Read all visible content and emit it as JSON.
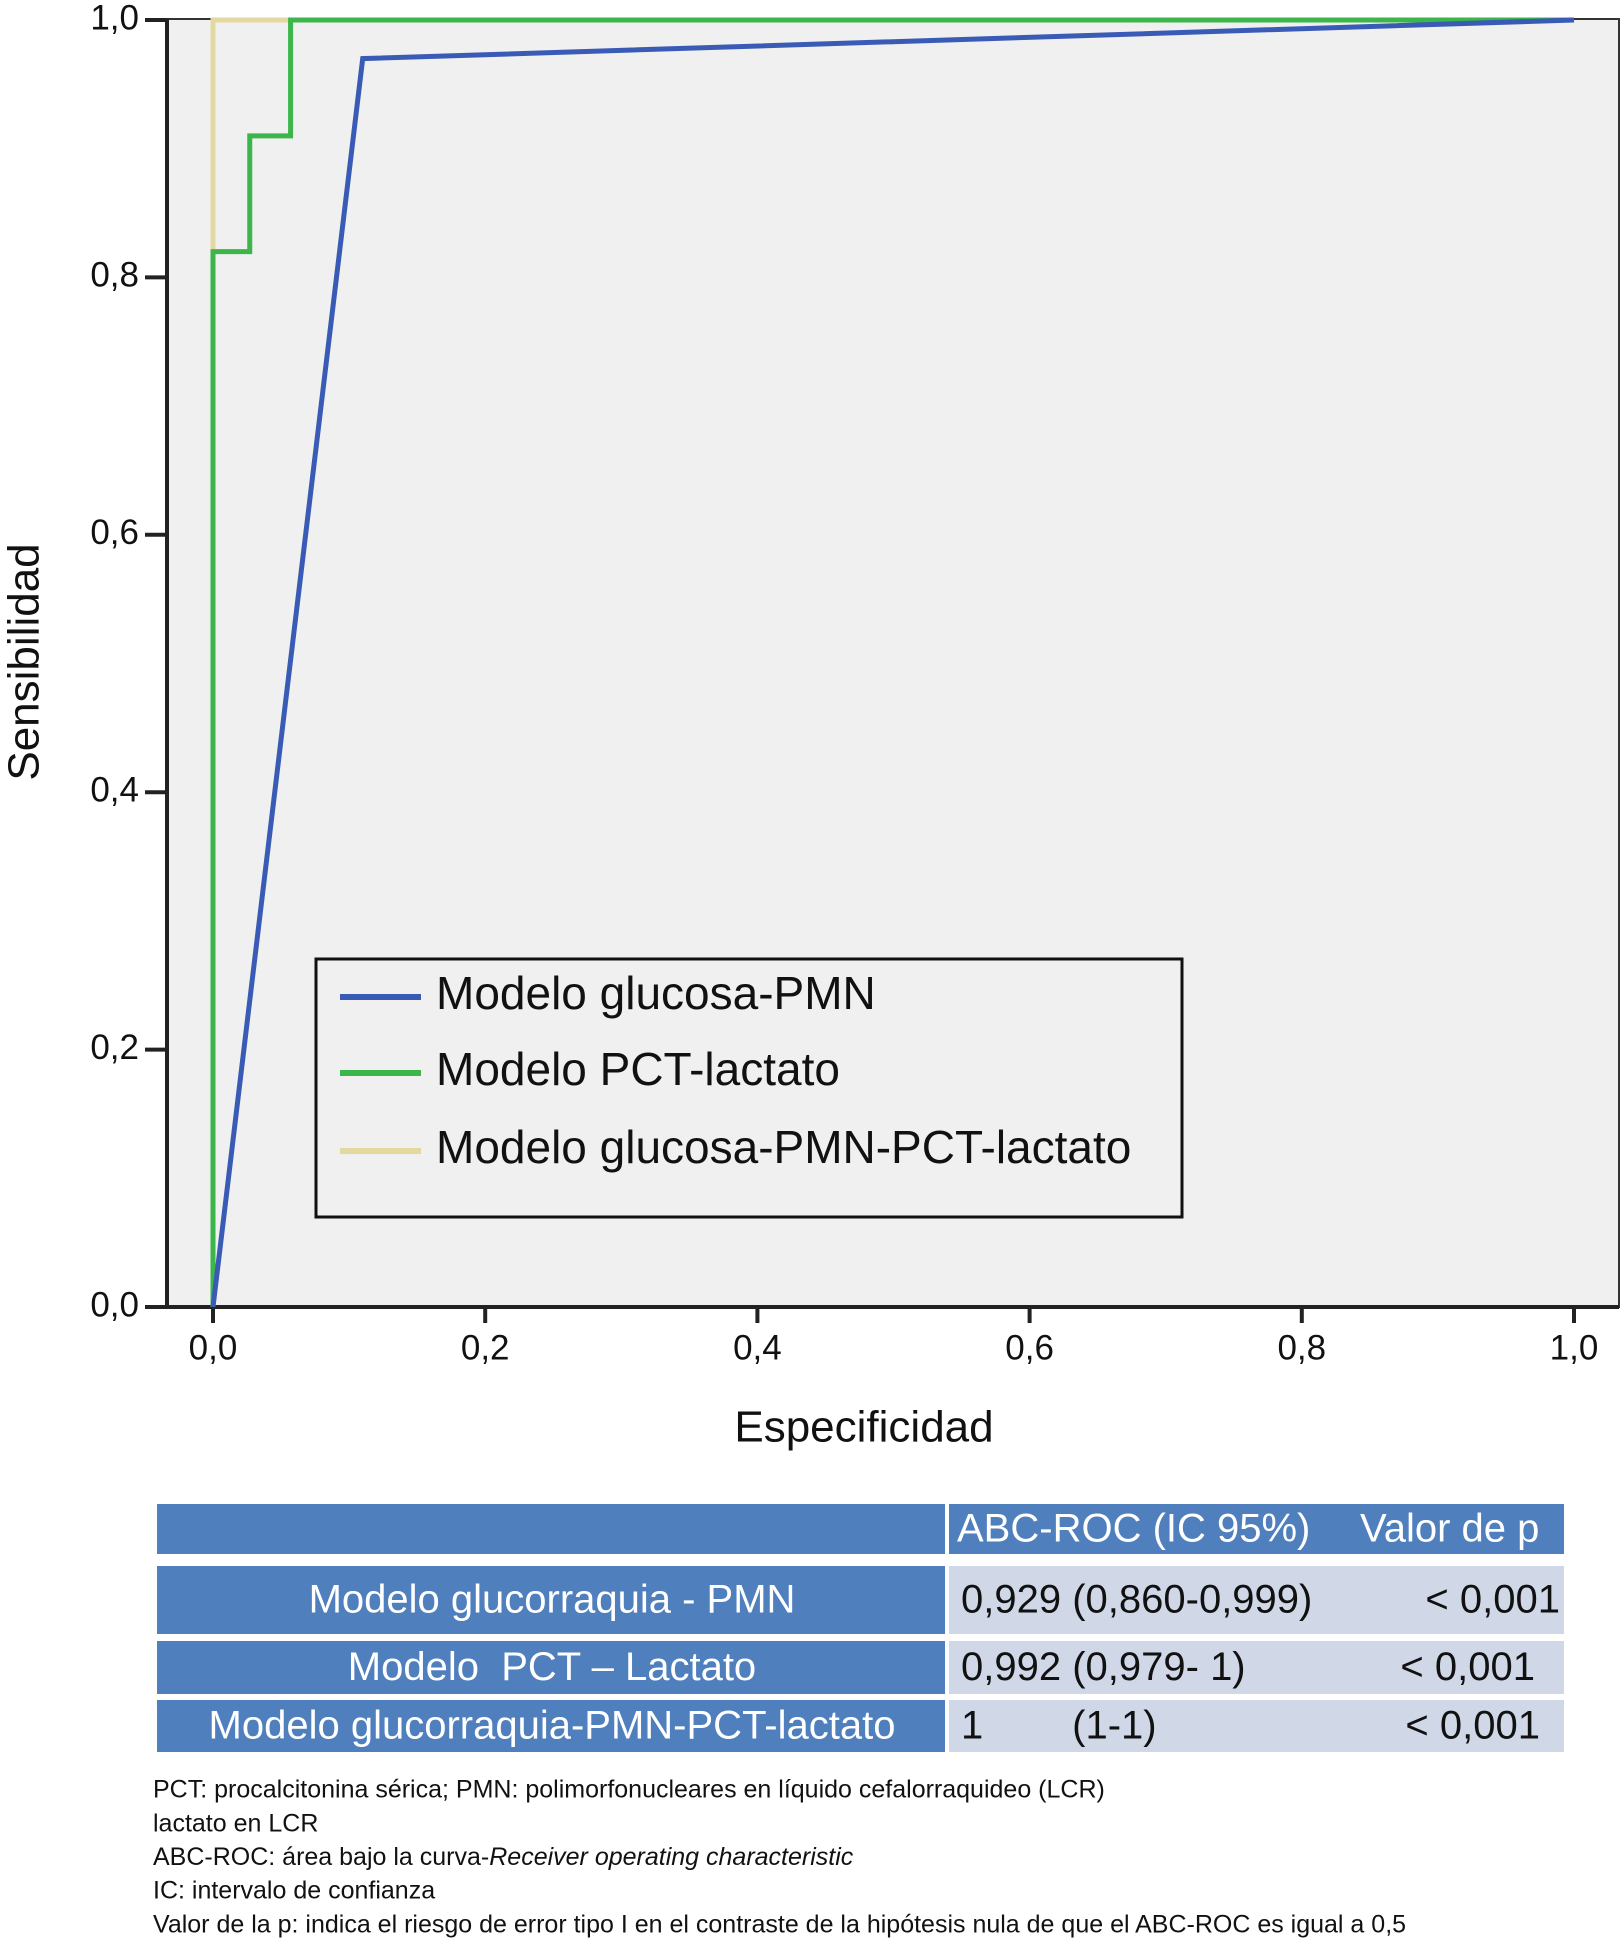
{
  "chart_data": {
    "type": "line",
    "x_label": "Especificidad",
    "y_label": "Sensibilidad",
    "xlim": [
      0,
      1
    ],
    "ylim": [
      0,
      1
    ],
    "xticks": [
      {
        "value": 0,
        "label": "0,0"
      },
      {
        "value": 0.2,
        "label": "0,2"
      },
      {
        "value": 0.4,
        "label": "0,4"
      },
      {
        "value": 0.6,
        "label": "0,6"
      },
      {
        "value": 0.8,
        "label": "0,8"
      },
      {
        "value": 1,
        "label": "1,0"
      }
    ],
    "yticks": [
      {
        "value": 0,
        "label": "0,0"
      },
      {
        "value": 0.2,
        "label": "0,2"
      },
      {
        "value": 0.4,
        "label": "0,4"
      },
      {
        "value": 0.6,
        "label": "0,6"
      },
      {
        "value": 0.8,
        "label": "0,8"
      },
      {
        "value": 1,
        "label": "1,0"
      }
    ],
    "grid": false,
    "legend": "lower-center",
    "series": [
      {
        "name": "Modelo glucosa-PMN",
        "color": "#3a5bb5",
        "x": [
          0,
          0.11,
          1
        ],
        "values": [
          0,
          0.97,
          1
        ]
      },
      {
        "name": "Modelo PCT-lactato",
        "color": "#3cb54a",
        "x": [
          0,
          0,
          0.027,
          0.027,
          0.057,
          0.057,
          1
        ],
        "values": [
          0,
          0.82,
          0.82,
          0.91,
          0.91,
          1,
          1
        ]
      },
      {
        "name": "Modelo glucosa-PMN-PCT-lactato",
        "color": "#e3d9a0",
        "x": [
          0,
          0,
          1
        ],
        "values": [
          0,
          1,
          1
        ]
      }
    ]
  },
  "table": {
    "header": [
      "ABC-ROC (IC 95%)",
      "Valor de p"
    ],
    "rows": [
      [
        "Modelo glucorraquia - PMN",
        "0,929 (0,860-0,999)",
        "< 0,001"
      ],
      [
        "Modelo  PCT – Lactato",
        "0,992 (0,979- 1)",
        "< 0,001"
      ],
      [
        "Modelo glucorraquia-PMN-PCT-lactato",
        "1        (1-1)",
        "< 0,001"
      ]
    ]
  },
  "footnotes": [
    "PCT: procalcitonina sérica; PMN: polimorfonucleares en líquido cefalorraquideo (LCR)",
    "lactato en LCR",
    [
      "ABC-ROC: área bajo la curva-",
      "Receiver operating characteristic"
    ],
    "IC: intervalo de confianza",
    "Valor de la p: indica el riesgo de error tipo I en el contraste de la hipótesis nula de que el  ABC-ROC  es igual a 0,5"
  ]
}
